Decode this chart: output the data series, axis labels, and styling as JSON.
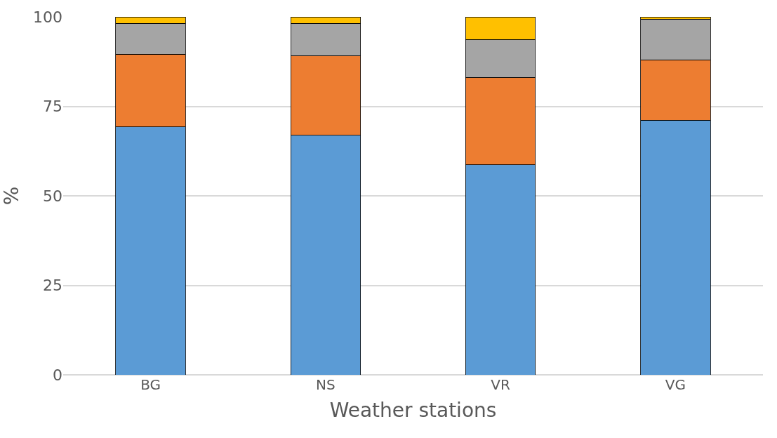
{
  "chart_data": {
    "type": "bar",
    "stacked": true,
    "xlabel": "Weather stations",
    "ylabel": "%",
    "categories": [
      "BG",
      "NS",
      "VR",
      "VG"
    ],
    "series": [
      {
        "color": "#5b9bd5",
        "values": [
          69.3,
          66.9,
          58.7,
          71.1
        ]
      },
      {
        "color": "#ed7d31",
        "values": [
          20.3,
          22.3,
          24.4,
          16.9
        ]
      },
      {
        "color": "#a5a5a5",
        "values": [
          8.6,
          9.0,
          10.6,
          11.4
        ]
      },
      {
        "color": "#ffc000",
        "values": [
          1.8,
          1.8,
          6.3,
          0.6
        ]
      }
    ],
    "ylim": [
      0,
      100
    ],
    "yticks": [
      0,
      25,
      50,
      75,
      100
    ],
    "grid": "y"
  }
}
